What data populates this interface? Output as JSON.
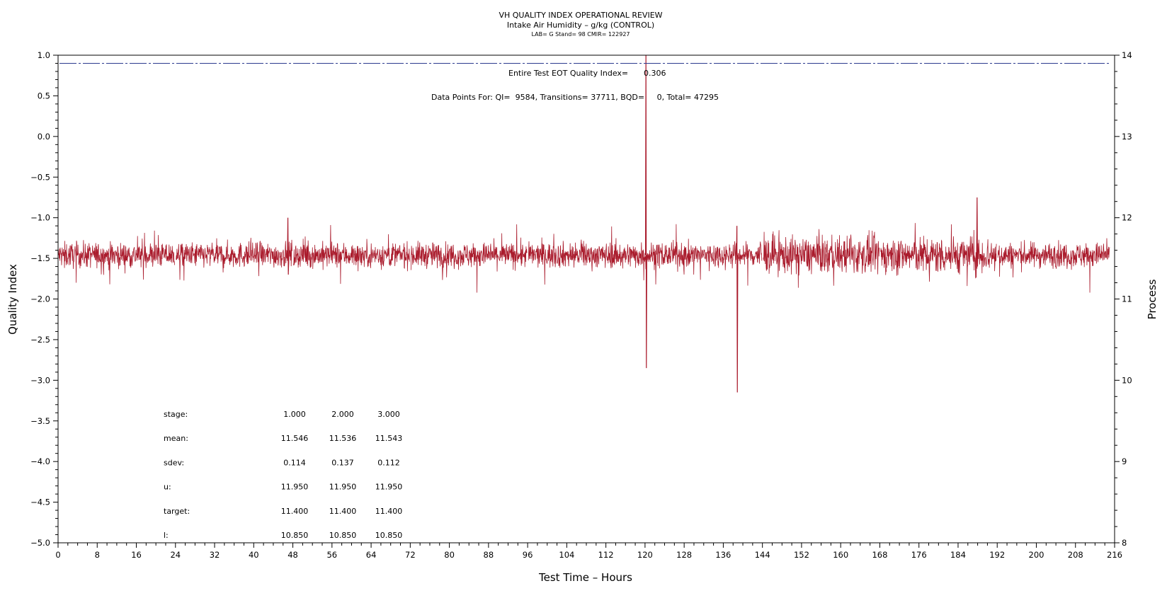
{
  "chart_data": {
    "type": "line",
    "title": "VH QUALITY INDEX OPERATIONAL REVIEW",
    "subtitle": "Intake Air Humidity – g/kg (CONTROL)",
    "subtitle2": "LAB= G Stand= 98 CMIR= 122927",
    "xlabel": "Test Time – Hours",
    "ylabel": "Quality Index",
    "y2label": "Process",
    "xlim": [
      0,
      216
    ],
    "ylim": [
      -5.0,
      1.0
    ],
    "y2lim": [
      8,
      14
    ],
    "x_ticks": [
      0,
      8,
      16,
      24,
      32,
      40,
      48,
      56,
      64,
      72,
      80,
      88,
      96,
      104,
      112,
      120,
      128,
      136,
      144,
      152,
      160,
      168,
      176,
      184,
      192,
      200,
      208,
      216
    ],
    "y_ticks": [
      1.0,
      0.5,
      0.0,
      -0.5,
      -1.0,
      -1.5,
      -2.0,
      -2.5,
      -3.0,
      -3.5,
      -4.0,
      -4.5,
      -5.0
    ],
    "y_tick_labels": [
      "1.0",
      "0.5",
      "0.0",
      "−0.5",
      "−1.0",
      "−1.5",
      "−2.0",
      "−2.5",
      "−3.0",
      "−3.5",
      "−4.0",
      "−4.5",
      "−5.0"
    ],
    "y2_ticks": [
      14,
      13,
      12,
      11,
      10,
      9,
      8
    ],
    "grid": false,
    "annotations": {
      "eot_label": "Entire Test EOT Quality Index=",
      "eot_value": "0.306",
      "points_text": "Data Points For: QI=  9584, Transitions= 37711, BQD=     0, Total= 47295"
    },
    "stats_table": {
      "rows": [
        {
          "label": "stage:",
          "values": [
            "1.000",
            "2.000",
            "3.000"
          ]
        },
        {
          "label": "mean:",
          "values": [
            "11.546",
            "11.536",
            "11.543"
          ]
        },
        {
          "label": "sdev:",
          "values": [
            "0.114",
            "0.137",
            "0.112"
          ]
        },
        {
          "label": "u:",
          "values": [
            "11.950",
            "11.950",
            "11.950"
          ]
        },
        {
          "label": "target:",
          "values": [
            "11.400",
            "11.400",
            "11.400"
          ]
        },
        {
          "label": "l:",
          "values": [
            "10.850",
            "10.850",
            "10.850"
          ]
        }
      ]
    },
    "series": [
      {
        "axis": "right",
        "color": "#aa1b2c",
        "style": "solid dense noise",
        "x_range": [
          0,
          215
        ],
        "baseline": 11.54,
        "typical_range": [
          11.25,
          11.8
        ],
        "gaps_at": [
          24,
          48,
          72,
          96,
          144,
          168,
          192
        ],
        "spikes": [
          {
            "x": 120.1,
            "low": 10.15,
            "high": 14.0
          },
          {
            "x": 138.7,
            "low": 9.85,
            "high": 11.9
          },
          {
            "x": 187.8,
            "low": 11.4,
            "high": 12.25
          },
          {
            "x": 46.9,
            "low": 11.3,
            "high": 12.0
          }
        ]
      },
      {
        "axis": "right",
        "color": "#2b3a8f",
        "style": "dash-dot",
        "x_range": [
          0,
          215
        ],
        "value": 13.9
      }
    ]
  }
}
